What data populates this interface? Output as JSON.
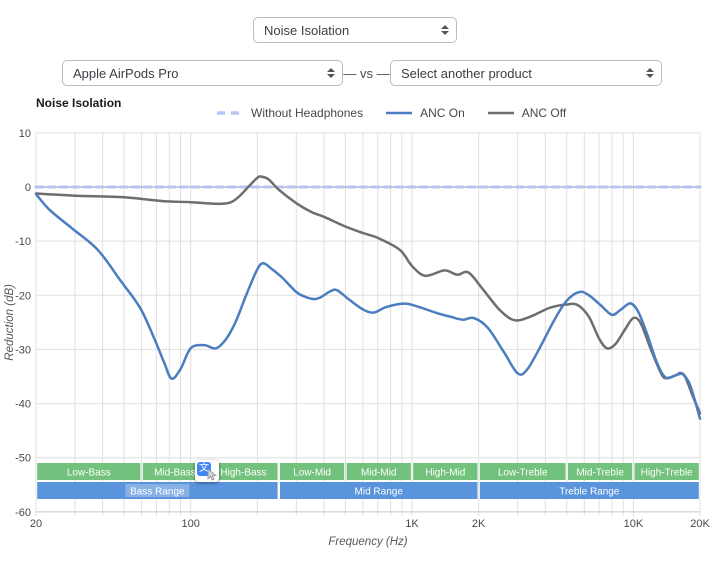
{
  "controls": {
    "metric_select": {
      "value": "Noise Isolation"
    },
    "left_product_select": {
      "value": "Apple AirPods Pro"
    },
    "vs_label": "— vs —",
    "right_product_select": {
      "value": "Select another product"
    }
  },
  "overlay_icon": {
    "name": "translate-selection-icon",
    "glyph": "文"
  },
  "chart_data": {
    "type": "line",
    "title": "Noise Isolation",
    "xlabel": "Frequency (Hz)",
    "ylabel": "Reduction (dB)",
    "x_scale": "log",
    "xlim": [
      20,
      20000
    ],
    "ylim": [
      -60,
      10
    ],
    "grid": true,
    "legend_position": "top",
    "x_tick_labels": [
      [
        20,
        "20"
      ],
      [
        100,
        "100"
      ],
      [
        1000,
        "1K"
      ],
      [
        2000,
        "2K"
      ],
      [
        10000,
        "10K"
      ],
      [
        20000,
        "20K"
      ]
    ],
    "y_ticks": [
      10,
      0,
      -10,
      -20,
      -30,
      -40,
      -50,
      -60
    ],
    "colors": {
      "grid": "#e0e0e0",
      "axis": "#c7c7c7",
      "zero_line": "#8a8a8a",
      "axis_text": "#4a4a4a",
      "band_text": "#ffffff"
    },
    "series": [
      {
        "name": "Without Headphones",
        "color": "#b7c4f1",
        "style": "dashed",
        "width": 3,
        "points": [
          [
            20,
            0
          ],
          [
            20000,
            0
          ]
        ]
      },
      {
        "name": "ANC Off",
        "color": "#6e6e6e",
        "style": "solid",
        "width": 2.5,
        "points": [
          [
            20,
            -1.2
          ],
          [
            30,
            -1.6
          ],
          [
            50,
            -1.9
          ],
          [
            75,
            -2.6
          ],
          [
            100,
            -2.8
          ],
          [
            130,
            -3.1
          ],
          [
            150,
            -2.9
          ],
          [
            165,
            -1.8
          ],
          [
            180,
            -0.2
          ],
          [
            200,
            1.7
          ],
          [
            210,
            1.9
          ],
          [
            225,
            1.4
          ],
          [
            250,
            -0.5
          ],
          [
            300,
            -3.0
          ],
          [
            350,
            -4.6
          ],
          [
            400,
            -5.5
          ],
          [
            500,
            -7.3
          ],
          [
            600,
            -8.5
          ],
          [
            700,
            -9.4
          ],
          [
            880,
            -11.6
          ],
          [
            1000,
            -14.6
          ],
          [
            1150,
            -16.4
          ],
          [
            1400,
            -15.4
          ],
          [
            1600,
            -16.2
          ],
          [
            1800,
            -15.8
          ],
          [
            2100,
            -19.0
          ],
          [
            2500,
            -22.8
          ],
          [
            2900,
            -24.6
          ],
          [
            3400,
            -24.0
          ],
          [
            4200,
            -22.3
          ],
          [
            5000,
            -21.7
          ],
          [
            5600,
            -21.8
          ],
          [
            6300,
            -24.0
          ],
          [
            7000,
            -28.0
          ],
          [
            7600,
            -29.8
          ],
          [
            8300,
            -29.0
          ],
          [
            9200,
            -26.2
          ],
          [
            10000,
            -24.2
          ],
          [
            10800,
            -25.2
          ],
          [
            12000,
            -30.0
          ],
          [
            13500,
            -34.8
          ],
          [
            14500,
            -35.2
          ],
          [
            16000,
            -34.6
          ],
          [
            17000,
            -34.8
          ],
          [
            18500,
            -38.5
          ],
          [
            20000,
            -41.8
          ]
        ]
      },
      {
        "name": "ANC On",
        "color": "#4a7ec0",
        "style": "solid",
        "width": 2.5,
        "points": [
          [
            20,
            -1.3
          ],
          [
            23,
            -4.2
          ],
          [
            29,
            -7.6
          ],
          [
            38,
            -11.6
          ],
          [
            48,
            -17.2
          ],
          [
            59,
            -22.3
          ],
          [
            68,
            -27.7
          ],
          [
            76,
            -32.5
          ],
          [
            82,
            -35.4
          ],
          [
            90,
            -33.6
          ],
          [
            100,
            -29.8
          ],
          [
            115,
            -29.2
          ],
          [
            130,
            -29.8
          ],
          [
            145,
            -28.0
          ],
          [
            160,
            -24.8
          ],
          [
            180,
            -19.5
          ],
          [
            200,
            -15.2
          ],
          [
            213,
            -14.1
          ],
          [
            235,
            -15.3
          ],
          [
            260,
            -16.8
          ],
          [
            300,
            -19.4
          ],
          [
            330,
            -20.3
          ],
          [
            360,
            -20.7
          ],
          [
            385,
            -20.4
          ],
          [
            430,
            -19.2
          ],
          [
            460,
            -19.1
          ],
          [
            520,
            -20.8
          ],
          [
            600,
            -22.6
          ],
          [
            670,
            -23.2
          ],
          [
            760,
            -22.2
          ],
          [
            880,
            -21.6
          ],
          [
            960,
            -21.6
          ],
          [
            1100,
            -22.3
          ],
          [
            1300,
            -23.3
          ],
          [
            1500,
            -24.0
          ],
          [
            1700,
            -24.5
          ],
          [
            1900,
            -24.2
          ],
          [
            2200,
            -26.0
          ],
          [
            2600,
            -30.5
          ],
          [
            3000,
            -34.4
          ],
          [
            3300,
            -33.8
          ],
          [
            3800,
            -29.5
          ],
          [
            4400,
            -24.5
          ],
          [
            5000,
            -21.0
          ],
          [
            5700,
            -19.4
          ],
          [
            6300,
            -20.0
          ],
          [
            7100,
            -21.8
          ],
          [
            8000,
            -23.6
          ],
          [
            8800,
            -22.6
          ],
          [
            9700,
            -21.5
          ],
          [
            10500,
            -23.0
          ],
          [
            11500,
            -27.0
          ],
          [
            12800,
            -32.5
          ],
          [
            14000,
            -35.2
          ],
          [
            15500,
            -34.8
          ],
          [
            16500,
            -34.4
          ],
          [
            18000,
            -36.5
          ],
          [
            20000,
            -42.8
          ]
        ]
      }
    ],
    "legend_order": [
      "Without Headphones",
      "ANC On",
      "ANC Off"
    ],
    "frequency_bands": {
      "sub_color": "#72c17c",
      "main_color": "#5a94dd",
      "sub": [
        {
          "label": "Low-Bass",
          "from": 20,
          "to": 60
        },
        {
          "label": "Mid-Bass",
          "from": 60,
          "to": 120
        },
        {
          "label": "High-Bass",
          "from": 120,
          "to": 250
        },
        {
          "label": "Low-Mid",
          "from": 250,
          "to": 500
        },
        {
          "label": "Mid-Mid",
          "from": 500,
          "to": 1000
        },
        {
          "label": "High-Mid",
          "from": 1000,
          "to": 2000
        },
        {
          "label": "Low-Treble",
          "from": 2000,
          "to": 5000
        },
        {
          "label": "Mid-Treble",
          "from": 5000,
          "to": 10000
        },
        {
          "label": "High-Treble",
          "from": 10000,
          "to": 20000
        }
      ],
      "main": [
        {
          "label": "Bass Range",
          "from": 20,
          "to": 250,
          "highlighted": true
        },
        {
          "label": "Mid Range",
          "from": 250,
          "to": 2000,
          "highlighted": false
        },
        {
          "label": "Treble Range",
          "from": 2000,
          "to": 20000,
          "highlighted": false
        }
      ]
    }
  }
}
